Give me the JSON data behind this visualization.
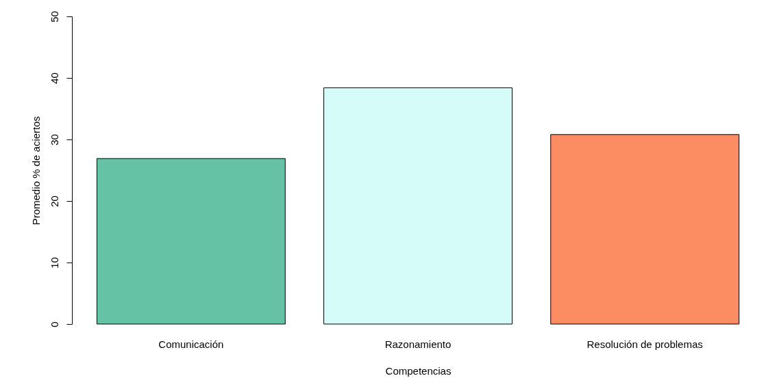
{
  "chart_data": {
    "type": "bar",
    "xlabel": "Competencias",
    "ylabel": "Promedio % de aciertos",
    "categories": [
      "Comunicación",
      "Razonamiento",
      "Resolución de problemas"
    ],
    "values": [
      26.9,
      38.4,
      30.8
    ],
    "colors": [
      "#66c2a5",
      "#d6fcf9",
      "#fc8d62"
    ],
    "ylim": [
      0,
      50
    ],
    "yticks": [
      0,
      10,
      20,
      30,
      40,
      50
    ],
    "grid": false
  }
}
